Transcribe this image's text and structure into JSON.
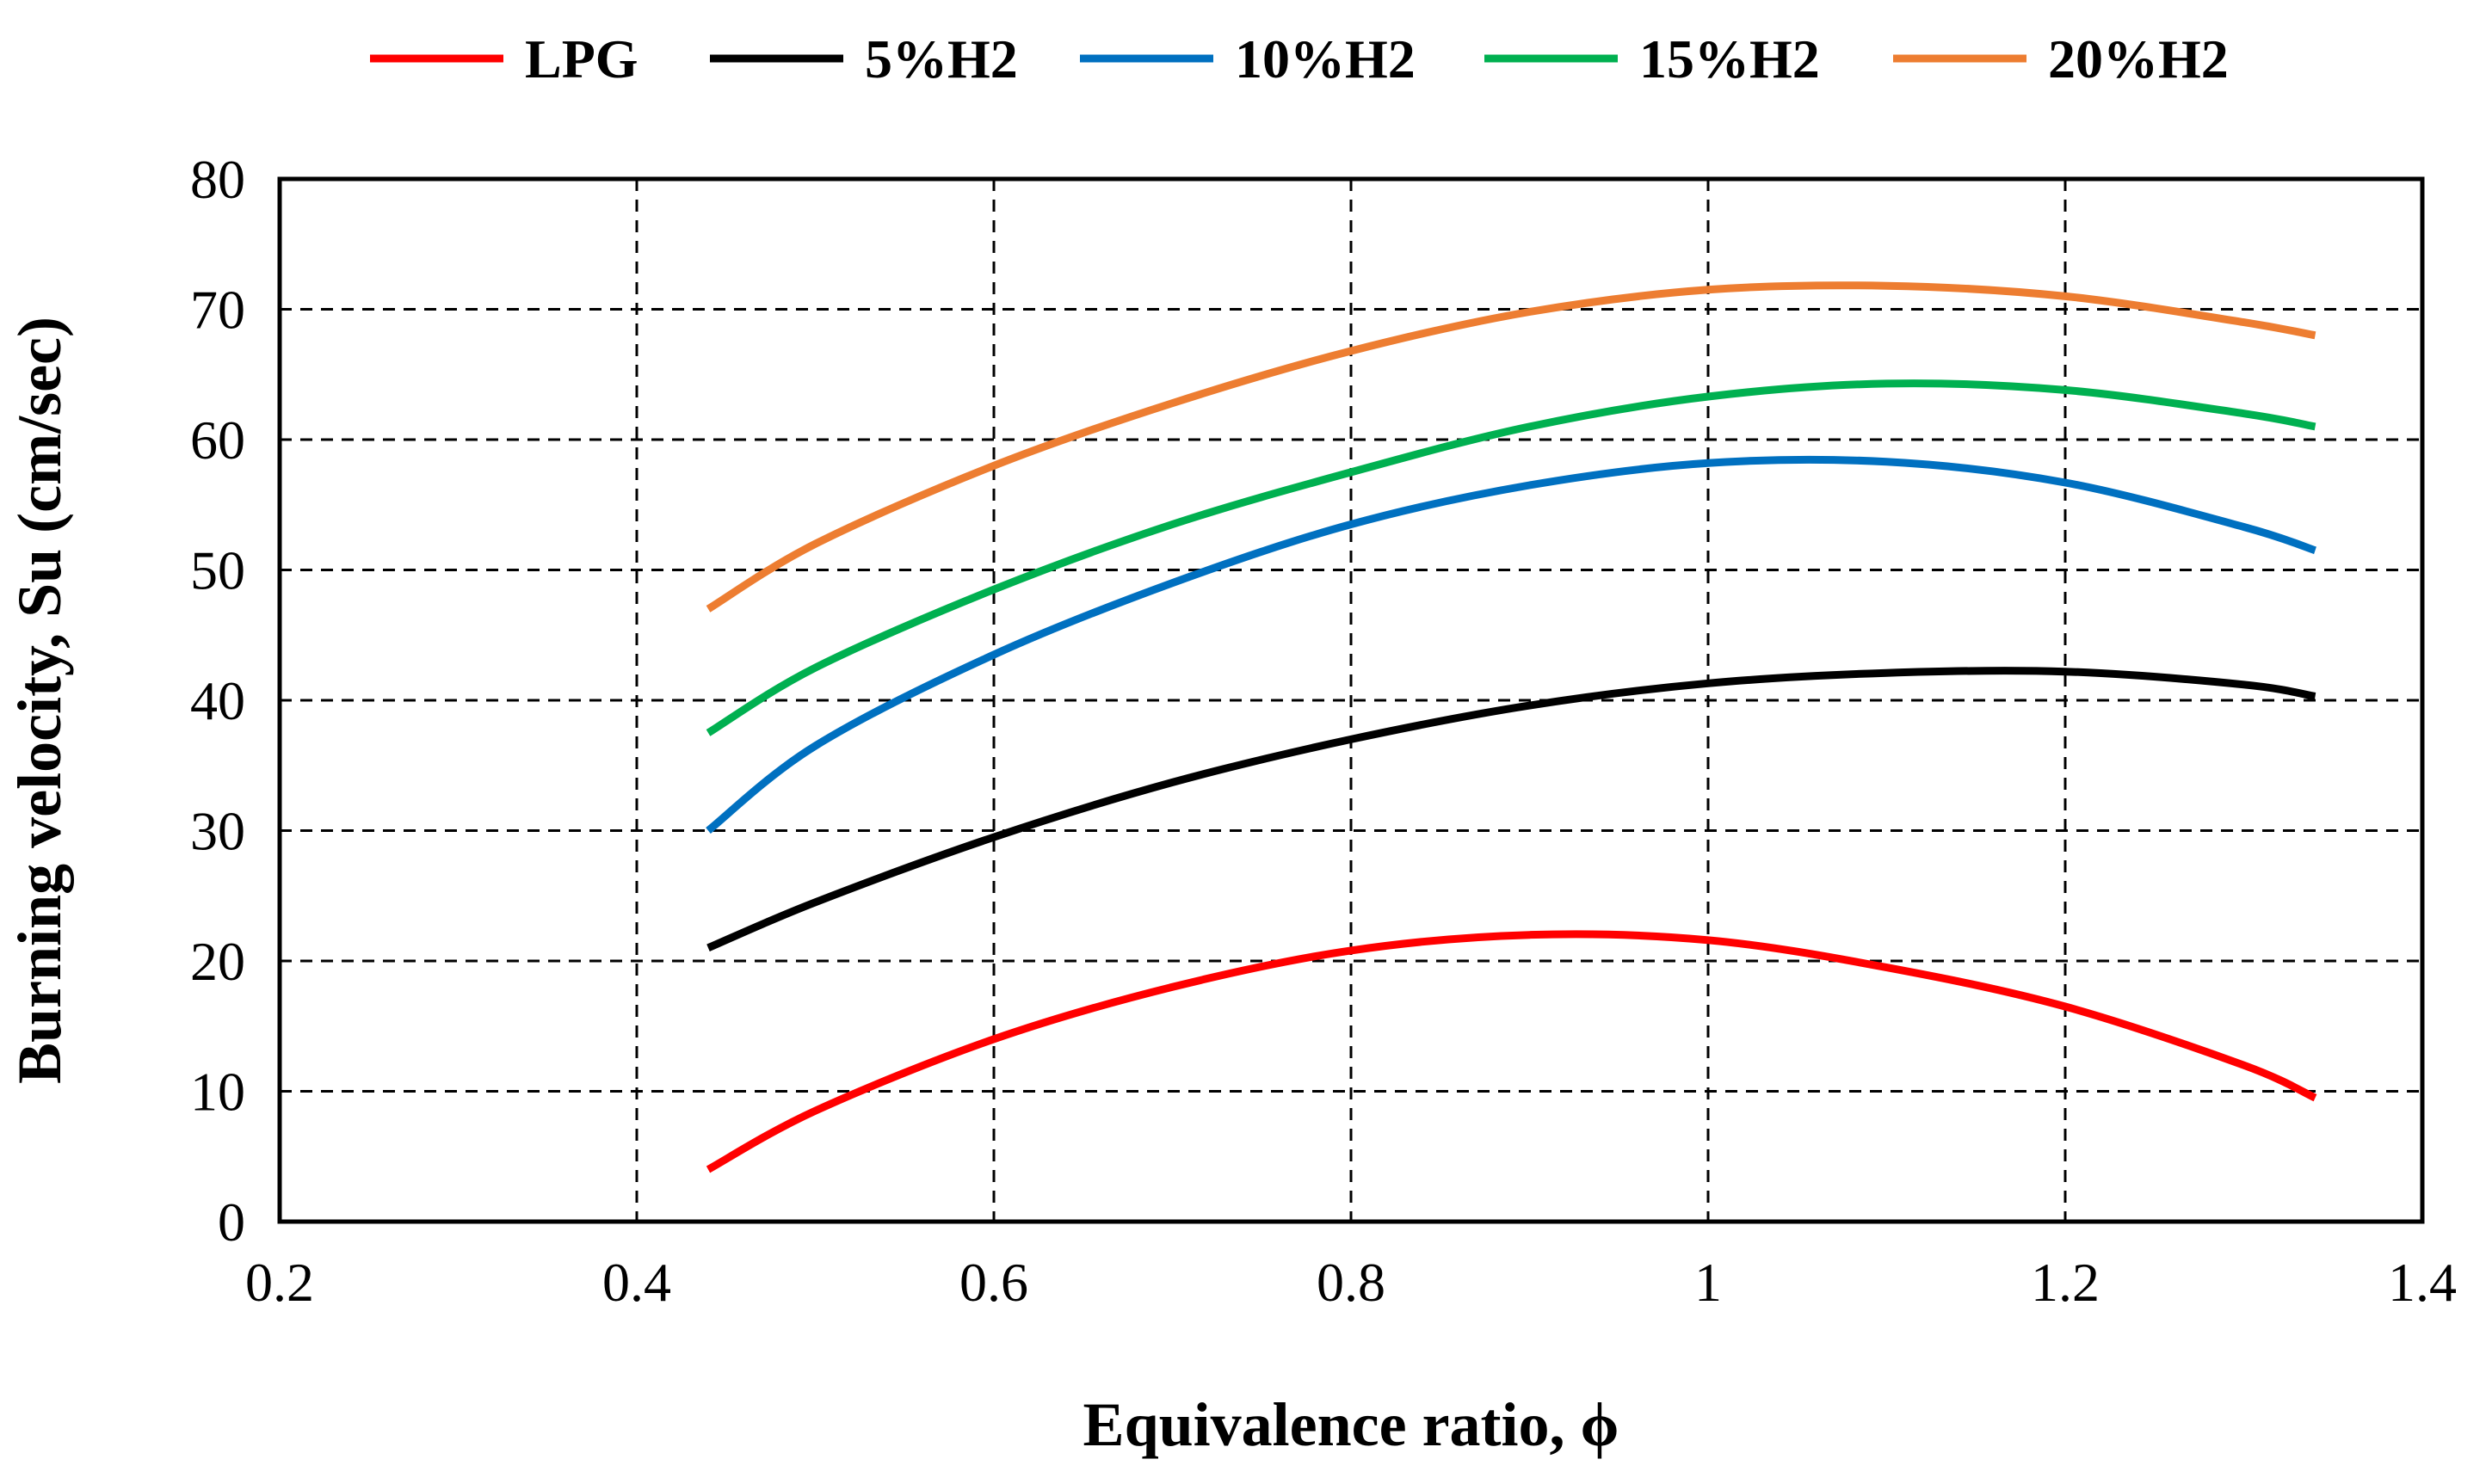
{
  "chart_data": {
    "type": "line",
    "title": "",
    "xlabel": "Equivalence ratio, ϕ",
    "ylabel": "Burning velocity, Su (cm/sec)",
    "xlim": [
      0.2,
      1.4
    ],
    "ylim": [
      0,
      80
    ],
    "xticks": [
      0.2,
      0.4,
      0.6,
      0.8,
      1.0,
      1.2,
      1.4
    ],
    "xtick_labels": [
      "0.2",
      "0.4",
      "0.6",
      "0.8",
      "1",
      "1.2",
      "1.4"
    ],
    "yticks": [
      0,
      10,
      20,
      30,
      40,
      50,
      60,
      70,
      80
    ],
    "ytick_labels": [
      "0",
      "10",
      "20",
      "30",
      "40",
      "50",
      "60",
      "70",
      "80"
    ],
    "grid": true,
    "legend_position": "top",
    "x": [
      0.44,
      0.5,
      0.6,
      0.7,
      0.8,
      0.9,
      1.0,
      1.1,
      1.2,
      1.3,
      1.34
    ],
    "series": [
      {
        "name": "LPG",
        "color": "#ff0000",
        "values": [
          4,
          8.5,
          14,
          18,
          20.8,
          22,
          21.6,
          19.5,
          16.5,
          12,
          9.5
        ]
      },
      {
        "name": "5%H2",
        "color": "#000000",
        "values": [
          21,
          24.5,
          29.5,
          33.7,
          37,
          39.6,
          41.3,
          42.1,
          42.2,
          41.2,
          40.3
        ]
      },
      {
        "name": "10%H2",
        "color": "#0070c0",
        "values": [
          30,
          36.5,
          43.5,
          49,
          53.5,
          56.5,
          58.2,
          58.3,
          56.7,
          53.3,
          51.5
        ]
      },
      {
        "name": "15%H2",
        "color": "#00b050",
        "values": [
          37.5,
          42.5,
          48.5,
          53.5,
          57.5,
          61,
          63.3,
          64.3,
          63.8,
          62,
          61
        ]
      },
      {
        "name": "20%H2",
        "color": "#ed7d31",
        "values": [
          47,
          52,
          58,
          62.8,
          66.8,
          69.8,
          71.5,
          71.8,
          71,
          69,
          68
        ]
      }
    ]
  }
}
